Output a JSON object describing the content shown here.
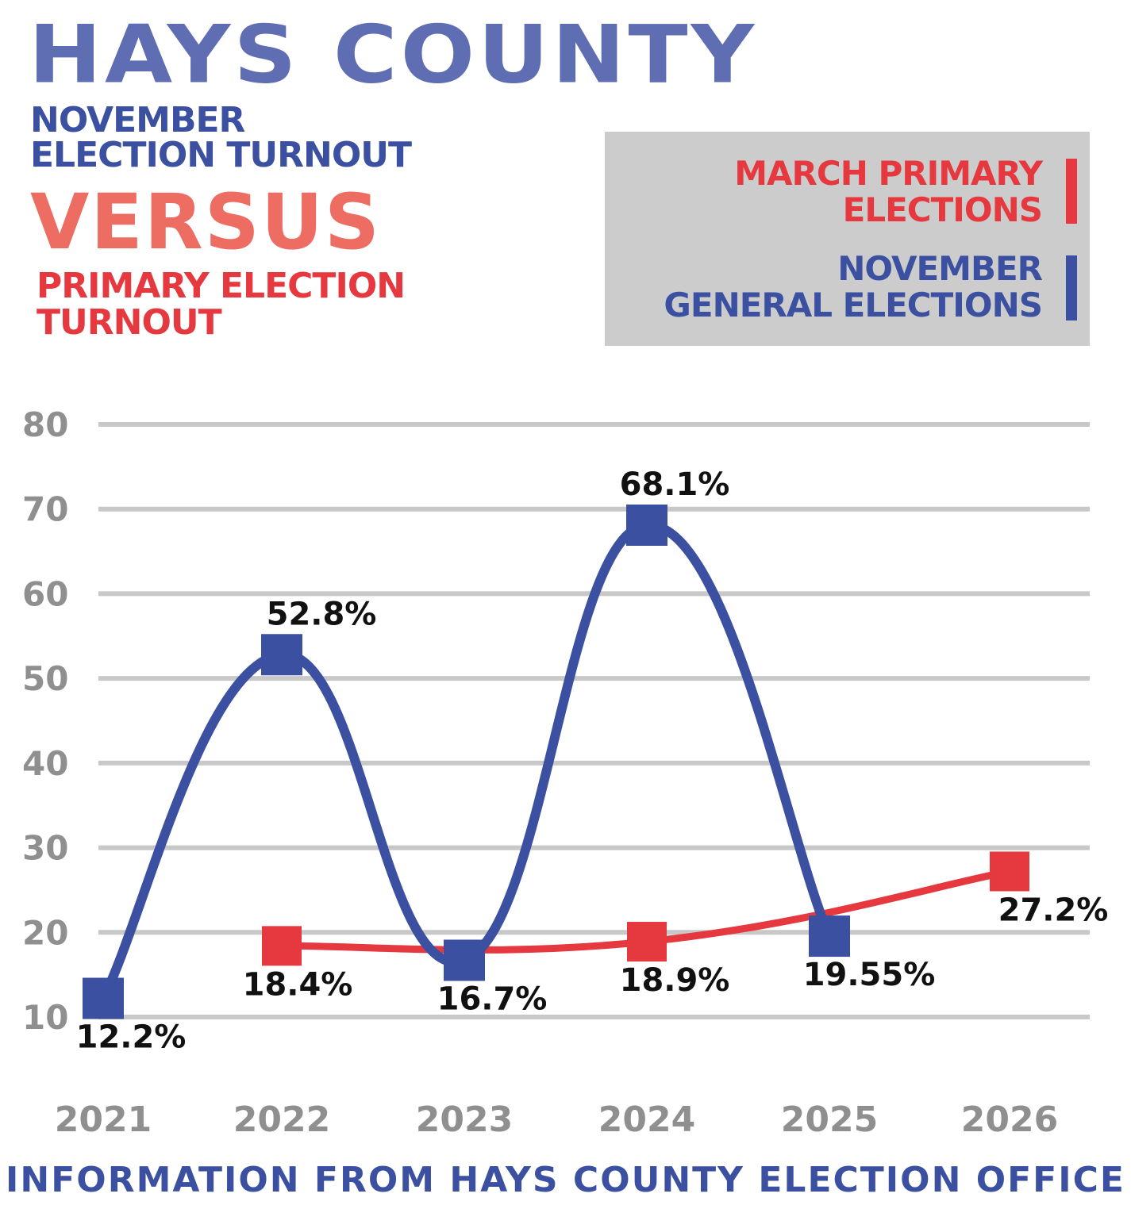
{
  "header": {
    "title": "HAYS COUNTY",
    "subtitle_line1": "NOVEMBER",
    "subtitle_line2": "ELECTION TURNOUT",
    "versus": "VERSUS",
    "subtitle2_line1": "PRIMARY ELECTION",
    "subtitle2_line2": "TURNOUT"
  },
  "legend": {
    "primary_line1": "MARCH PRIMARY",
    "primary_line2": "ELECTIONS",
    "general_line1": "NOVEMBER",
    "general_line2": "GENERAL ELECTIONS"
  },
  "source": "INFORMATION FROM HAYS COUNTY ELECTION OFFICE",
  "colors": {
    "general": "#3b50a0",
    "primary": "#e5383f",
    "title": "#5f6db3",
    "versus": "#ee6d62",
    "grid": "#c8c8c8",
    "tick": "#8f8f8f",
    "legend_bg": "#cccccc"
  },
  "chart_data": {
    "type": "line",
    "title": "HAYS COUNTY",
    "xlabel": "",
    "ylabel": "",
    "categories": [
      "2021",
      "2022",
      "2023",
      "2024",
      "2025",
      "2026"
    ],
    "yticks": [
      10,
      20,
      30,
      40,
      50,
      60,
      70,
      80
    ],
    "ylim": [
      10,
      80
    ],
    "grid": true,
    "legend_position": "top-right",
    "series": [
      {
        "name": "NOVEMBER GENERAL ELECTIONS",
        "color": "#3b50a0",
        "points": [
          {
            "x": "2021",
            "value": 12.2,
            "label": "12.2%"
          },
          {
            "x": "2022",
            "value": 52.8,
            "label": "52.8%"
          },
          {
            "x": "2023",
            "value": 16.7,
            "label": "16.7%"
          },
          {
            "x": "2024",
            "value": 68.1,
            "label": "68.1%"
          },
          {
            "x": "2025",
            "value": 19.55,
            "label": "19.55%"
          }
        ]
      },
      {
        "name": "MARCH PRIMARY ELECTIONS",
        "color": "#e5383f",
        "points": [
          {
            "x": "2022",
            "value": 18.4,
            "label": "18.4%"
          },
          {
            "x": "2024",
            "value": 18.9,
            "label": "18.9%"
          },
          {
            "x": "2026",
            "value": 27.2,
            "label": "27.2%"
          }
        ]
      }
    ]
  }
}
